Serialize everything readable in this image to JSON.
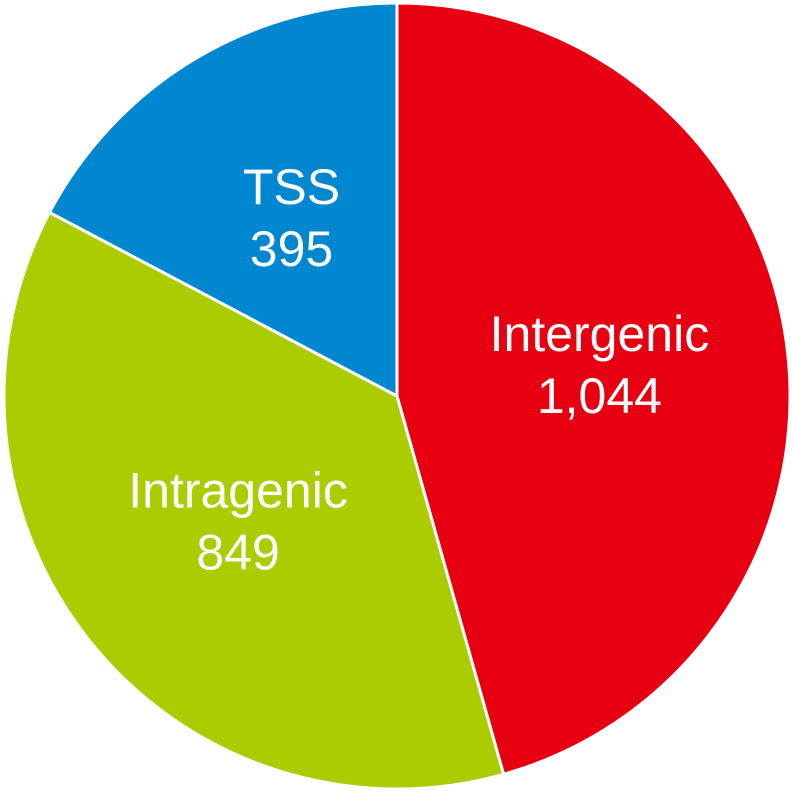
{
  "chart_data": {
    "type": "pie",
    "categories": [
      "Intergenic",
      "Intragenic",
      "TSS"
    ],
    "values": [
      1044,
      849,
      395
    ],
    "value_labels": [
      "1,044",
      "849",
      "395"
    ],
    "colors": [
      "#e60012",
      "#aacc00",
      "#0087d0"
    ]
  }
}
